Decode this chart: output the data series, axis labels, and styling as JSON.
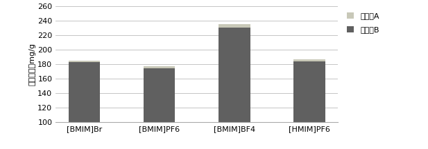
{
  "categories": [
    "[BMIM]Br",
    "[BMIM]PF6",
    "[BMIM]BF4",
    "[HMIM]PF6"
  ],
  "compound_A_total": [
    185,
    177,
    235,
    187
  ],
  "compound_B_total": [
    183,
    174,
    230,
    184
  ],
  "ymin": 100,
  "color_A": "#c8c8b8",
  "color_B": "#606060",
  "ylabel": "萃取总含量mg/g",
  "ylim": [
    100,
    260
  ],
  "yticks": [
    100,
    120,
    140,
    160,
    180,
    200,
    220,
    240,
    260
  ],
  "legend_A": "化合物A",
  "legend_B": "化合物B",
  "bar_width": 0.42,
  "figsize": [
    6.17,
    2.16
  ],
  "dpi": 100,
  "grid_color": "#bbbbbb",
  "bg_color": "#ffffff"
}
